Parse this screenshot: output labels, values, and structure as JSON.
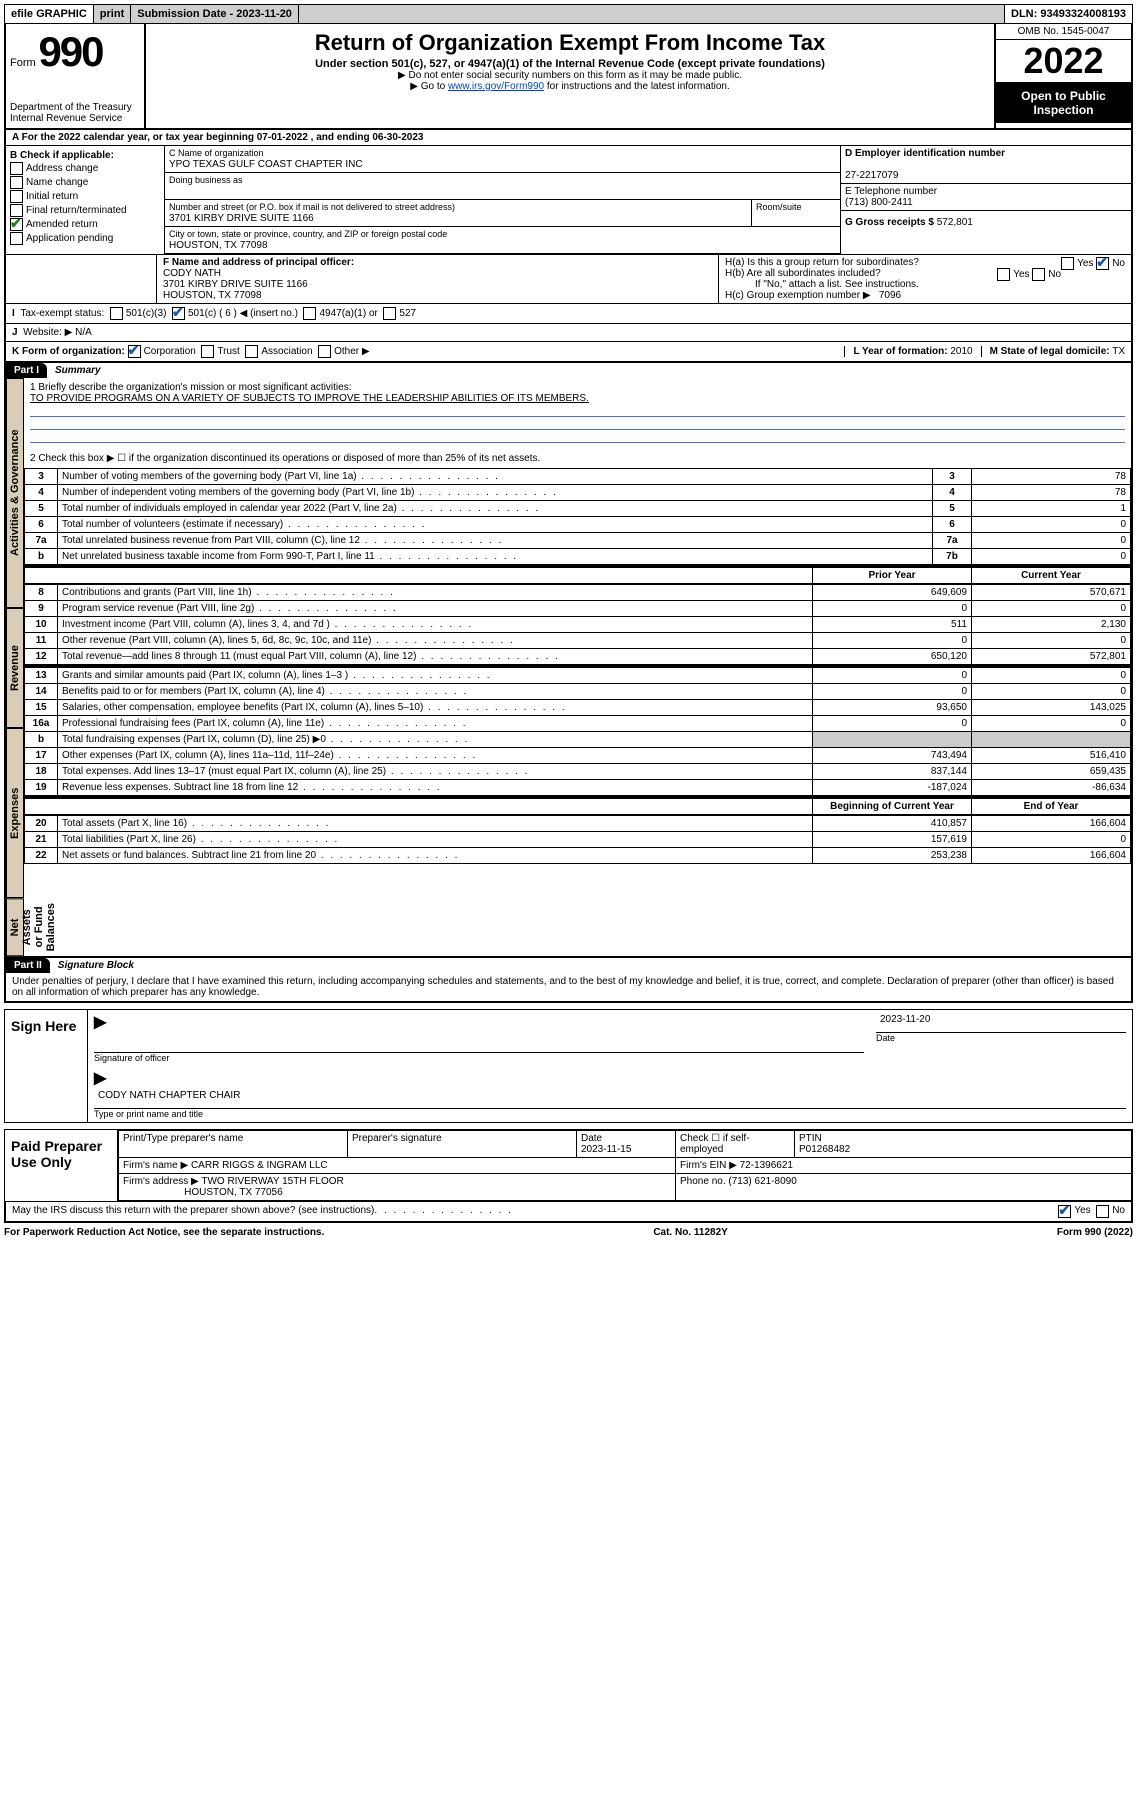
{
  "topbar": {
    "efile": "efile GRAPHIC",
    "print": "print",
    "sub_label": "Submission Date - 2023-11-20",
    "dln": "DLN: 93493324008193"
  },
  "header": {
    "form_word": "Form",
    "form_no": "990",
    "dept": "Department of the Treasury",
    "irs": "Internal Revenue Service",
    "title": "Return of Organization Exempt From Income Tax",
    "sub1": "Under section 501(c), 527, or 4947(a)(1) of the Internal Revenue Code (except private foundations)",
    "sub2": "▶ Do not enter social security numbers on this form as it may be made public.",
    "sub3_pre": "▶ Go to ",
    "sub3_link": "www.irs.gov/Form990",
    "sub3_post": " for instructions and the latest information.",
    "omb": "OMB No. 1545-0047",
    "year": "2022",
    "open": "Open to Public Inspection"
  },
  "period": {
    "label_a": "A For the 2022 calendar year, or tax year beginning ",
    "begin": "07-01-2022",
    "mid": " , and ending ",
    "end": "06-30-2023"
  },
  "boxB": {
    "title": "B Check if applicable:",
    "items": [
      {
        "label": "Address change",
        "checked": false
      },
      {
        "label": "Name change",
        "checked": false
      },
      {
        "label": "Initial return",
        "checked": false
      },
      {
        "label": "Final return/terminated",
        "checked": false
      },
      {
        "label": "Amended return",
        "checked": true
      },
      {
        "label": "Application pending",
        "checked": false
      }
    ]
  },
  "boxC": {
    "name_label": "C Name of organization",
    "name": "YPO TEXAS GULF COAST CHAPTER INC",
    "dba_label": "Doing business as",
    "dba": "",
    "addr_label": "Number and street (or P.O. box if mail is not delivered to street address)",
    "room_label": "Room/suite",
    "addr": "3701 KIRBY DRIVE SUITE 1166",
    "city_label": "City or town, state or province, country, and ZIP or foreign postal code",
    "city": "HOUSTON, TX  77098"
  },
  "boxD": {
    "label": "D Employer identification number",
    "value": "27-2217079"
  },
  "boxE": {
    "label": "E Telephone number",
    "value": "(713) 800-2411"
  },
  "boxG": {
    "label": "G Gross receipts $",
    "value": "572,801"
  },
  "boxF": {
    "label": "F Name and address of principal officer:",
    "name": "CODY NATH",
    "addr1": "3701 KIRBY DRIVE SUITE 1166",
    "addr2": "HOUSTON, TX  77098"
  },
  "boxH": {
    "a_label": "H(a)  Is this a group return for subordinates?",
    "a_yes": "Yes",
    "a_no": "No",
    "b_label": "H(b)  Are all subordinates included?",
    "b_yes": "Yes",
    "b_no": "No",
    "b_note": "If \"No,\" attach a list. See instructions.",
    "c_label": "H(c)  Group exemption number ▶",
    "c_value": "7096"
  },
  "boxI": {
    "label": "Tax-exempt status:",
    "c501c3": "501(c)(3)",
    "c501c": "501(c) ( 6 ) ◀ (insert no.)",
    "c4947": "4947(a)(1) or",
    "c527": "527"
  },
  "boxJ": {
    "label": "Website: ▶",
    "value": "N/A"
  },
  "boxK": {
    "label": "K Form of organization:",
    "corp": "Corporation",
    "trust": "Trust",
    "assoc": "Association",
    "other": "Other ▶"
  },
  "boxL": {
    "label": "L Year of formation:",
    "value": "2010"
  },
  "boxM": {
    "label": "M State of legal domicile:",
    "value": "TX"
  },
  "part1": {
    "no": "Part I",
    "title": "Summary"
  },
  "summary": {
    "q1_label": "1  Briefly describe the organization's mission or most significant activities:",
    "q1_text": "TO PROVIDE PROGRAMS ON A VARIETY OF SUBJECTS TO IMPROVE THE LEADERSHIP ABILITIES OF ITS MEMBERS.",
    "q2": "2  Check this box ▶ ☐  if the organization discontinued its operations or disposed of more than 25% of its net assets.",
    "rows_ag": [
      {
        "n": "3",
        "t": "Number of voting members of the governing body (Part VI, line 1a)",
        "box": "3",
        "v": "78"
      },
      {
        "n": "4",
        "t": "Number of independent voting members of the governing body (Part VI, line 1b)",
        "box": "4",
        "v": "78"
      },
      {
        "n": "5",
        "t": "Total number of individuals employed in calendar year 2022 (Part V, line 2a)",
        "box": "5",
        "v": "1"
      },
      {
        "n": "6",
        "t": "Total number of volunteers (estimate if necessary)",
        "box": "6",
        "v": "0"
      },
      {
        "n": "7a",
        "t": "Total unrelated business revenue from Part VIII, column (C), line 12",
        "box": "7a",
        "v": "0"
      },
      {
        "n": "b",
        "t": "Net unrelated business taxable income from Form 990-T, Part I, line 11",
        "box": "7b",
        "v": "0"
      }
    ],
    "col_prior": "Prior Year",
    "col_current": "Current Year",
    "rows_rev": [
      {
        "n": "8",
        "t": "Contributions and grants (Part VIII, line 1h)",
        "p": "649,609",
        "c": "570,671"
      },
      {
        "n": "9",
        "t": "Program service revenue (Part VIII, line 2g)",
        "p": "0",
        "c": "0"
      },
      {
        "n": "10",
        "t": "Investment income (Part VIII, column (A), lines 3, 4, and 7d )",
        "p": "511",
        "c": "2,130"
      },
      {
        "n": "11",
        "t": "Other revenue (Part VIII, column (A), lines 5, 6d, 8c, 9c, 10c, and 11e)",
        "p": "0",
        "c": "0"
      },
      {
        "n": "12",
        "t": "Total revenue—add lines 8 through 11 (must equal Part VIII, column (A), line 12)",
        "p": "650,120",
        "c": "572,801"
      }
    ],
    "rows_exp": [
      {
        "n": "13",
        "t": "Grants and similar amounts paid (Part IX, column (A), lines 1–3 )",
        "p": "0",
        "c": "0"
      },
      {
        "n": "14",
        "t": "Benefits paid to or for members (Part IX, column (A), line 4)",
        "p": "0",
        "c": "0"
      },
      {
        "n": "15",
        "t": "Salaries, other compensation, employee benefits (Part IX, column (A), lines 5–10)",
        "p": "93,650",
        "c": "143,025"
      },
      {
        "n": "16a",
        "t": "Professional fundraising fees (Part IX, column (A), line 11e)",
        "p": "0",
        "c": "0"
      },
      {
        "n": "b",
        "t": "Total fundraising expenses (Part IX, column (D), line 25) ▶0",
        "p": "",
        "c": ""
      },
      {
        "n": "17",
        "t": "Other expenses (Part IX, column (A), lines 11a–11d, 11f–24e)",
        "p": "743,494",
        "c": "516,410"
      },
      {
        "n": "18",
        "t": "Total expenses. Add lines 13–17 (must equal Part IX, column (A), line 25)",
        "p": "837,144",
        "c": "659,435"
      },
      {
        "n": "19",
        "t": "Revenue less expenses. Subtract line 18 from line 12",
        "p": "-187,024",
        "c": "-86,634"
      }
    ],
    "col_boy": "Beginning of Current Year",
    "col_eoy": "End of Year",
    "rows_na": [
      {
        "n": "20",
        "t": "Total assets (Part X, line 16)",
        "p": "410,857",
        "c": "166,604"
      },
      {
        "n": "21",
        "t": "Total liabilities (Part X, line 26)",
        "p": "157,619",
        "c": "0"
      },
      {
        "n": "22",
        "t": "Net assets or fund balances. Subtract line 21 from line 20",
        "p": "253,238",
        "c": "166,604"
      }
    ],
    "side_ag": "Activities & Governance",
    "side_rev": "Revenue",
    "side_exp": "Expenses",
    "side_na": "Net Assets or Fund Balances"
  },
  "part2": {
    "no": "Part II",
    "title": "Signature Block"
  },
  "penalty": "Under penalties of perjury, I declare that I have examined this return, including accompanying schedules and statements, and to the best of my knowledge and belief, it is true, correct, and complete. Declaration of preparer (other than officer) is based on all information of which preparer has any knowledge.",
  "sign": {
    "here": "Sign Here",
    "sig_officer": "Signature of officer",
    "date_label": "Date",
    "date": "2023-11-20",
    "name": "CODY NATH  CHAPTER CHAIR",
    "name_label": "Type or print name and title"
  },
  "paid": {
    "title": "Paid Preparer Use Only",
    "h_name": "Print/Type preparer's name",
    "h_sig": "Preparer's signature",
    "h_date": "Date",
    "date": "2023-11-15",
    "h_self": "Check ☐ if self-employed",
    "h_ptin": "PTIN",
    "ptin": "P01268482",
    "firm_label": "Firm's name    ▶",
    "firm": "CARR RIGGS & INGRAM LLC",
    "ein_label": "Firm's EIN ▶",
    "ein": "72-1396621",
    "addr_label": "Firm's address ▶",
    "addr1": "TWO RIVERWAY 15TH FLOOR",
    "addr2": "HOUSTON, TX  77056",
    "phone_label": "Phone no.",
    "phone": "(713) 621-8090"
  },
  "discuss": {
    "q": "May the IRS discuss this return with the preparer shown above? (see instructions)",
    "yes": "Yes",
    "no": "No"
  },
  "footer": {
    "left": "For Paperwork Reduction Act Notice, see the separate instructions.",
    "mid": "Cat. No. 11282Y",
    "right": "Form 990 (2022)"
  }
}
